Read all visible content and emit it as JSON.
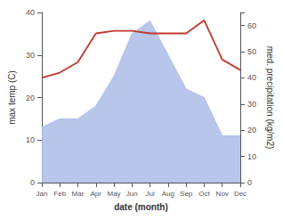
{
  "chart_data": {
    "type": "line",
    "categories": [
      "Jan",
      "Feb",
      "Mar",
      "Apr",
      "May",
      "Jun",
      "Jul",
      "Aug",
      "Sep",
      "Oct",
      "Nov",
      "Dec"
    ],
    "series": [
      {
        "type": "area",
        "color": "#afc0e8",
        "values": [
          13,
          15,
          15,
          18,
          25,
          35,
          38,
          30,
          22,
          20,
          11,
          11
        ]
      },
      {
        "type": "line",
        "color": "#c0392b",
        "axis": "y2",
        "values": [
          40,
          42,
          46,
          57,
          58,
          58,
          57,
          57,
          57,
          62,
          47,
          43
        ]
      }
    ],
    "xlabel": "date (month)",
    "ylabel": "max temp (C)",
    "y2label": "med. precipitation (kg/m2)",
    "ylim": [
      0,
      40
    ],
    "yticks": [
      0,
      10,
      20,
      30,
      40
    ],
    "y2lim": [
      0,
      65
    ],
    "y2ticks": [
      0,
      10,
      20,
      30,
      40,
      50,
      60
    ],
    "grid": false
  }
}
